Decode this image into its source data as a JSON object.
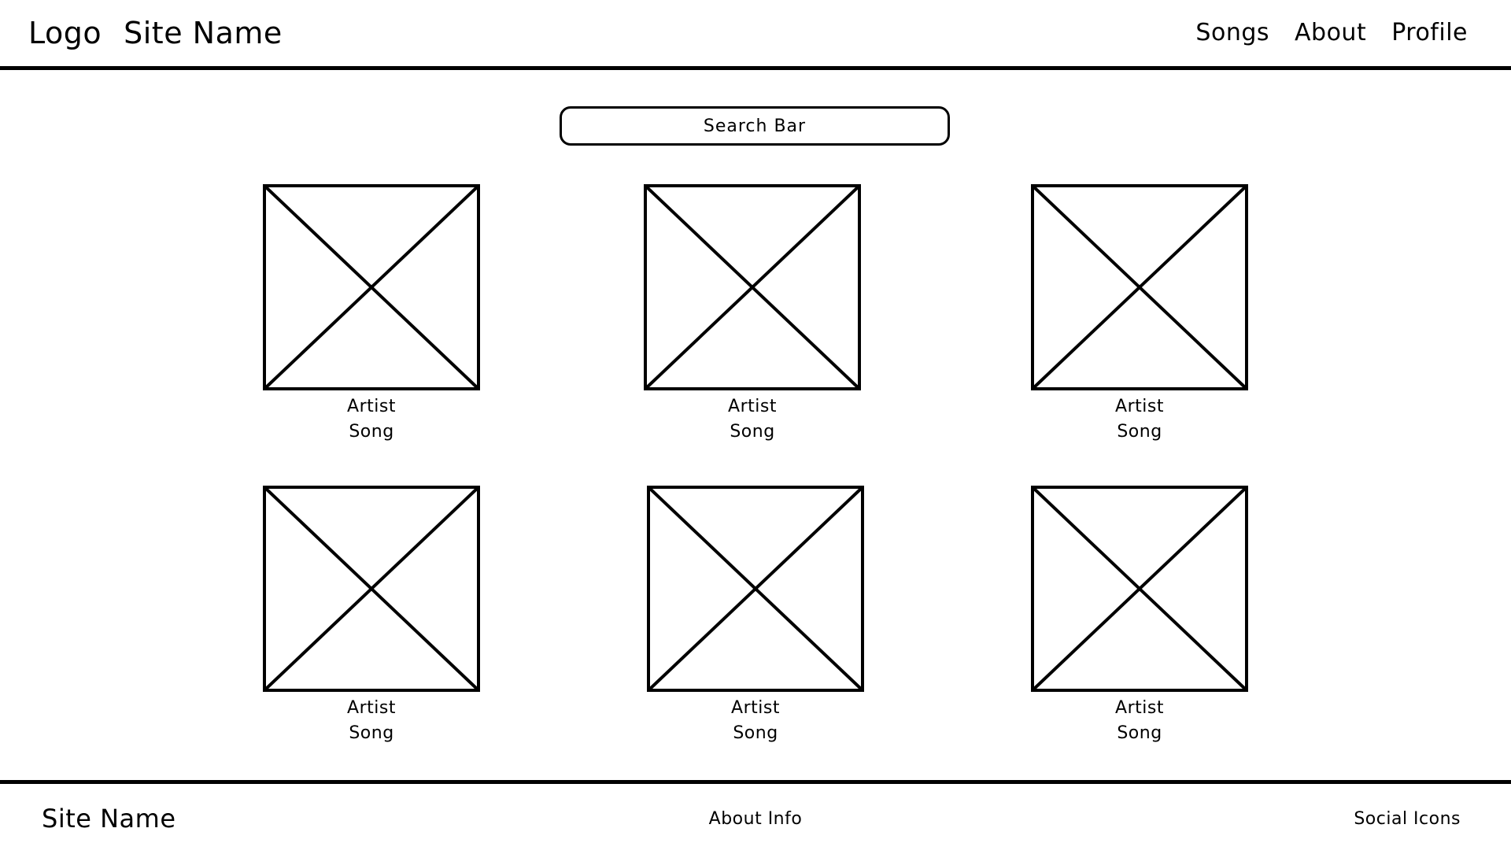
{
  "header": {
    "logo_label": "Logo",
    "site_name": "Site Name",
    "nav": {
      "songs": "Songs",
      "about": "About",
      "profile": "Profile"
    }
  },
  "search": {
    "placeholder": "Search Bar",
    "value": ""
  },
  "cards": [
    {
      "artist": "Artist",
      "song": "Song"
    },
    {
      "artist": "Artist",
      "song": "Song"
    },
    {
      "artist": "Artist",
      "song": "Song"
    },
    {
      "artist": "Artist",
      "song": "Song"
    },
    {
      "artist": "Artist",
      "song": "Song"
    },
    {
      "artist": "Artist",
      "song": "Song"
    }
  ],
  "footer": {
    "site_name": "Site Name",
    "about_info": "About Info",
    "social_icons": "Social Icons"
  }
}
